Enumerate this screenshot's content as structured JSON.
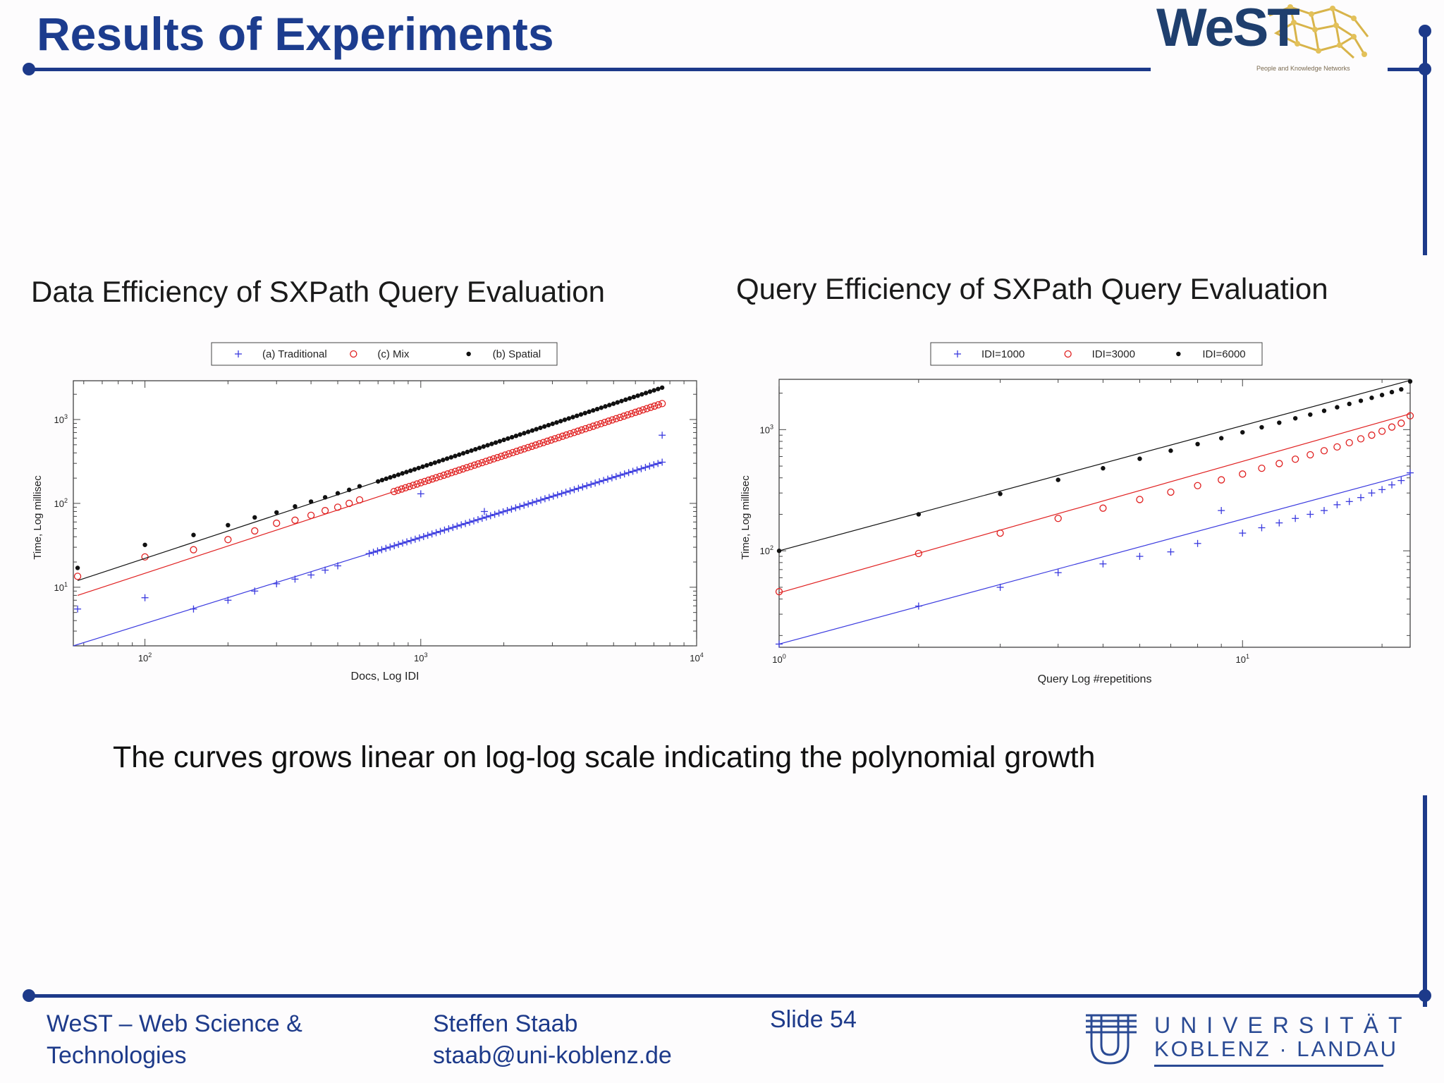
{
  "slide": {
    "title": "Results of Experiments",
    "conclusion": "The curves grows linear on log-log scale indicating the polynomial growth"
  },
  "logo": {
    "name": "WeST",
    "tagline": "People and Knowledge Networks"
  },
  "footer": {
    "org_line1": "WeST – Web Science &",
    "org_line2": "Technologies",
    "author": "Steffen Staab",
    "email": "staab@uni-koblenz.de",
    "slide_number": "Slide 54",
    "university_line1": "UNIVERSITÄT",
    "university_line2": "KOBLENZ · LANDAU"
  },
  "colors": {
    "title_blue": "#1c3c8e",
    "rule_blue": "#1d3a8a",
    "series_blue": "#3a3adf",
    "series_red": "#e02020",
    "series_black": "#111111"
  },
  "chart_data": [
    {
      "type": "scatter",
      "title": "Data Efficiency of SXPath Query Evaluation",
      "xlabel": "Docs,  Log IDI",
      "ylabel": "Time, Log millisec",
      "x_scale": "log",
      "y_scale": "log",
      "xlim": [
        55,
        10000
      ],
      "ylim": [
        2,
        2900
      ],
      "xticks": [
        {
          "value": 100,
          "base": "10",
          "exp": "2"
        },
        {
          "value": 1000,
          "base": "10",
          "exp": "3"
        },
        {
          "value": 10000,
          "base": "10",
          "exp": "4"
        }
      ],
      "yticks": [
        {
          "value": 10,
          "base": "10",
          "exp": "1"
        },
        {
          "value": 100,
          "base": "10",
          "exp": "2"
        },
        {
          "value": 1000,
          "base": "10",
          "exp": "3"
        }
      ],
      "legend_position": "top-center",
      "series": [
        {
          "name": "(a) Traditional",
          "marker": "plus",
          "color": "#3a3adf",
          "fit": {
            "from": [
              55,
              2
            ],
            "to": [
              7500,
              310
            ]
          },
          "dense_from": 650,
          "points": [
            [
              57,
              5.5
            ],
            [
              100,
              7.5
            ],
            [
              150,
              5.5
            ],
            [
              200,
              7
            ],
            [
              250,
              9
            ],
            [
              300,
              11
            ],
            [
              350,
              12.5
            ],
            [
              400,
              14
            ],
            [
              450,
              16
            ],
            [
              500,
              18
            ],
            [
              1000,
              130
            ],
            [
              1700,
              80
            ],
            [
              7500,
              650
            ]
          ]
        },
        {
          "name": "(c) Mix",
          "marker": "circle",
          "color": "#e02020",
          "fit": {
            "from": [
              57,
              8
            ],
            "to": [
              7500,
              1550
            ]
          },
          "dense_from": 800,
          "points": [
            [
              57,
              13.5
            ],
            [
              100,
              23
            ],
            [
              150,
              28
            ],
            [
              200,
              37
            ],
            [
              250,
              47
            ],
            [
              300,
              58
            ],
            [
              350,
              63
            ],
            [
              400,
              72
            ],
            [
              450,
              82
            ],
            [
              500,
              90
            ],
            [
              550,
              100
            ],
            [
              600,
              110
            ]
          ]
        },
        {
          "name": "(b) Spatial",
          "marker": "star",
          "color": "#111111",
          "fit": {
            "from": [
              57,
              12
            ],
            "to": [
              7500,
              2400
            ]
          },
          "dense_from": 700,
          "points": [
            [
              57,
              17
            ],
            [
              100,
              32
            ],
            [
              150,
              42
            ],
            [
              200,
              55
            ],
            [
              250,
              68
            ],
            [
              300,
              78
            ],
            [
              350,
              92
            ],
            [
              400,
              105
            ],
            [
              450,
              118
            ],
            [
              500,
              132
            ],
            [
              550,
              145
            ],
            [
              600,
              160
            ]
          ]
        }
      ]
    },
    {
      "type": "scatter",
      "title": "Query Efficiency of SXPath Query Evaluation",
      "xlabel": "Query  Log #repetitions",
      "ylabel": "Time, Log millisec",
      "x_scale": "log",
      "y_scale": "log",
      "xlim": [
        1,
        23
      ],
      "ylim": [
        16,
        2600
      ],
      "xticks": [
        {
          "value": 1,
          "base": "10",
          "exp": "0"
        },
        {
          "value": 10,
          "base": "10",
          "exp": "1"
        }
      ],
      "yticks": [
        {
          "value": 100,
          "base": "10",
          "exp": "2"
        },
        {
          "value": 1000,
          "base": "10",
          "exp": "3"
        }
      ],
      "legend_position": "top-center",
      "series": [
        {
          "name": "IDI=1000",
          "marker": "plus",
          "color": "#3a3adf",
          "fit": {
            "from": [
              1,
              17
            ],
            "to": [
              23,
              430
            ]
          },
          "points": [
            [
              1,
              17
            ],
            [
              2,
              35
            ],
            [
              3,
              50
            ],
            [
              4,
              66
            ],
            [
              5,
              78
            ],
            [
              6,
              90
            ],
            [
              7,
              98
            ],
            [
              8,
              115
            ],
            [
              9,
              215
            ],
            [
              10,
              140
            ],
            [
              11,
              155
            ],
            [
              12,
              170
            ],
            [
              13,
              185
            ],
            [
              14,
              200
            ],
            [
              15,
              215
            ],
            [
              16,
              240
            ],
            [
              17,
              255
            ],
            [
              18,
              275
            ],
            [
              19,
              300
            ],
            [
              20,
              320
            ],
            [
              21,
              350
            ],
            [
              22,
              380
            ],
            [
              23,
              440
            ]
          ]
        },
        {
          "name": "IDI=3000",
          "marker": "circle",
          "color": "#e02020",
          "fit": {
            "from": [
              1,
              45
            ],
            "to": [
              23,
              1350
            ]
          },
          "points": [
            [
              1,
              46
            ],
            [
              2,
              95
            ],
            [
              3,
              140
            ],
            [
              4,
              185
            ],
            [
              5,
              225
            ],
            [
              6,
              265
            ],
            [
              7,
              305
            ],
            [
              8,
              345
            ],
            [
              9,
              385
            ],
            [
              10,
              430
            ],
            [
              11,
              480
            ],
            [
              12,
              525
            ],
            [
              13,
              570
            ],
            [
              14,
              620
            ],
            [
              15,
              670
            ],
            [
              16,
              720
            ],
            [
              17,
              780
            ],
            [
              18,
              840
            ],
            [
              19,
              900
            ],
            [
              20,
              970
            ],
            [
              21,
              1050
            ],
            [
              22,
              1130
            ],
            [
              23,
              1300
            ]
          ]
        },
        {
          "name": "IDI=6000",
          "marker": "star",
          "color": "#111111",
          "fit": {
            "from": [
              1,
              100
            ],
            "to": [
              23,
              2550
            ]
          },
          "points": [
            [
              1,
              100
            ],
            [
              2,
              200
            ],
            [
              3,
              295
            ],
            [
              4,
              385
            ],
            [
              5,
              480
            ],
            [
              6,
              575
            ],
            [
              7,
              670
            ],
            [
              8,
              760
            ],
            [
              9,
              850
            ],
            [
              10,
              950
            ],
            [
              11,
              1045
            ],
            [
              12,
              1140
            ],
            [
              13,
              1240
            ],
            [
              14,
              1330
            ],
            [
              15,
              1430
            ],
            [
              16,
              1530
            ],
            [
              17,
              1630
            ],
            [
              18,
              1730
            ],
            [
              19,
              1830
            ],
            [
              20,
              1930
            ],
            [
              21,
              2040
            ],
            [
              22,
              2150
            ],
            [
              23,
              2500
            ]
          ]
        }
      ]
    }
  ]
}
